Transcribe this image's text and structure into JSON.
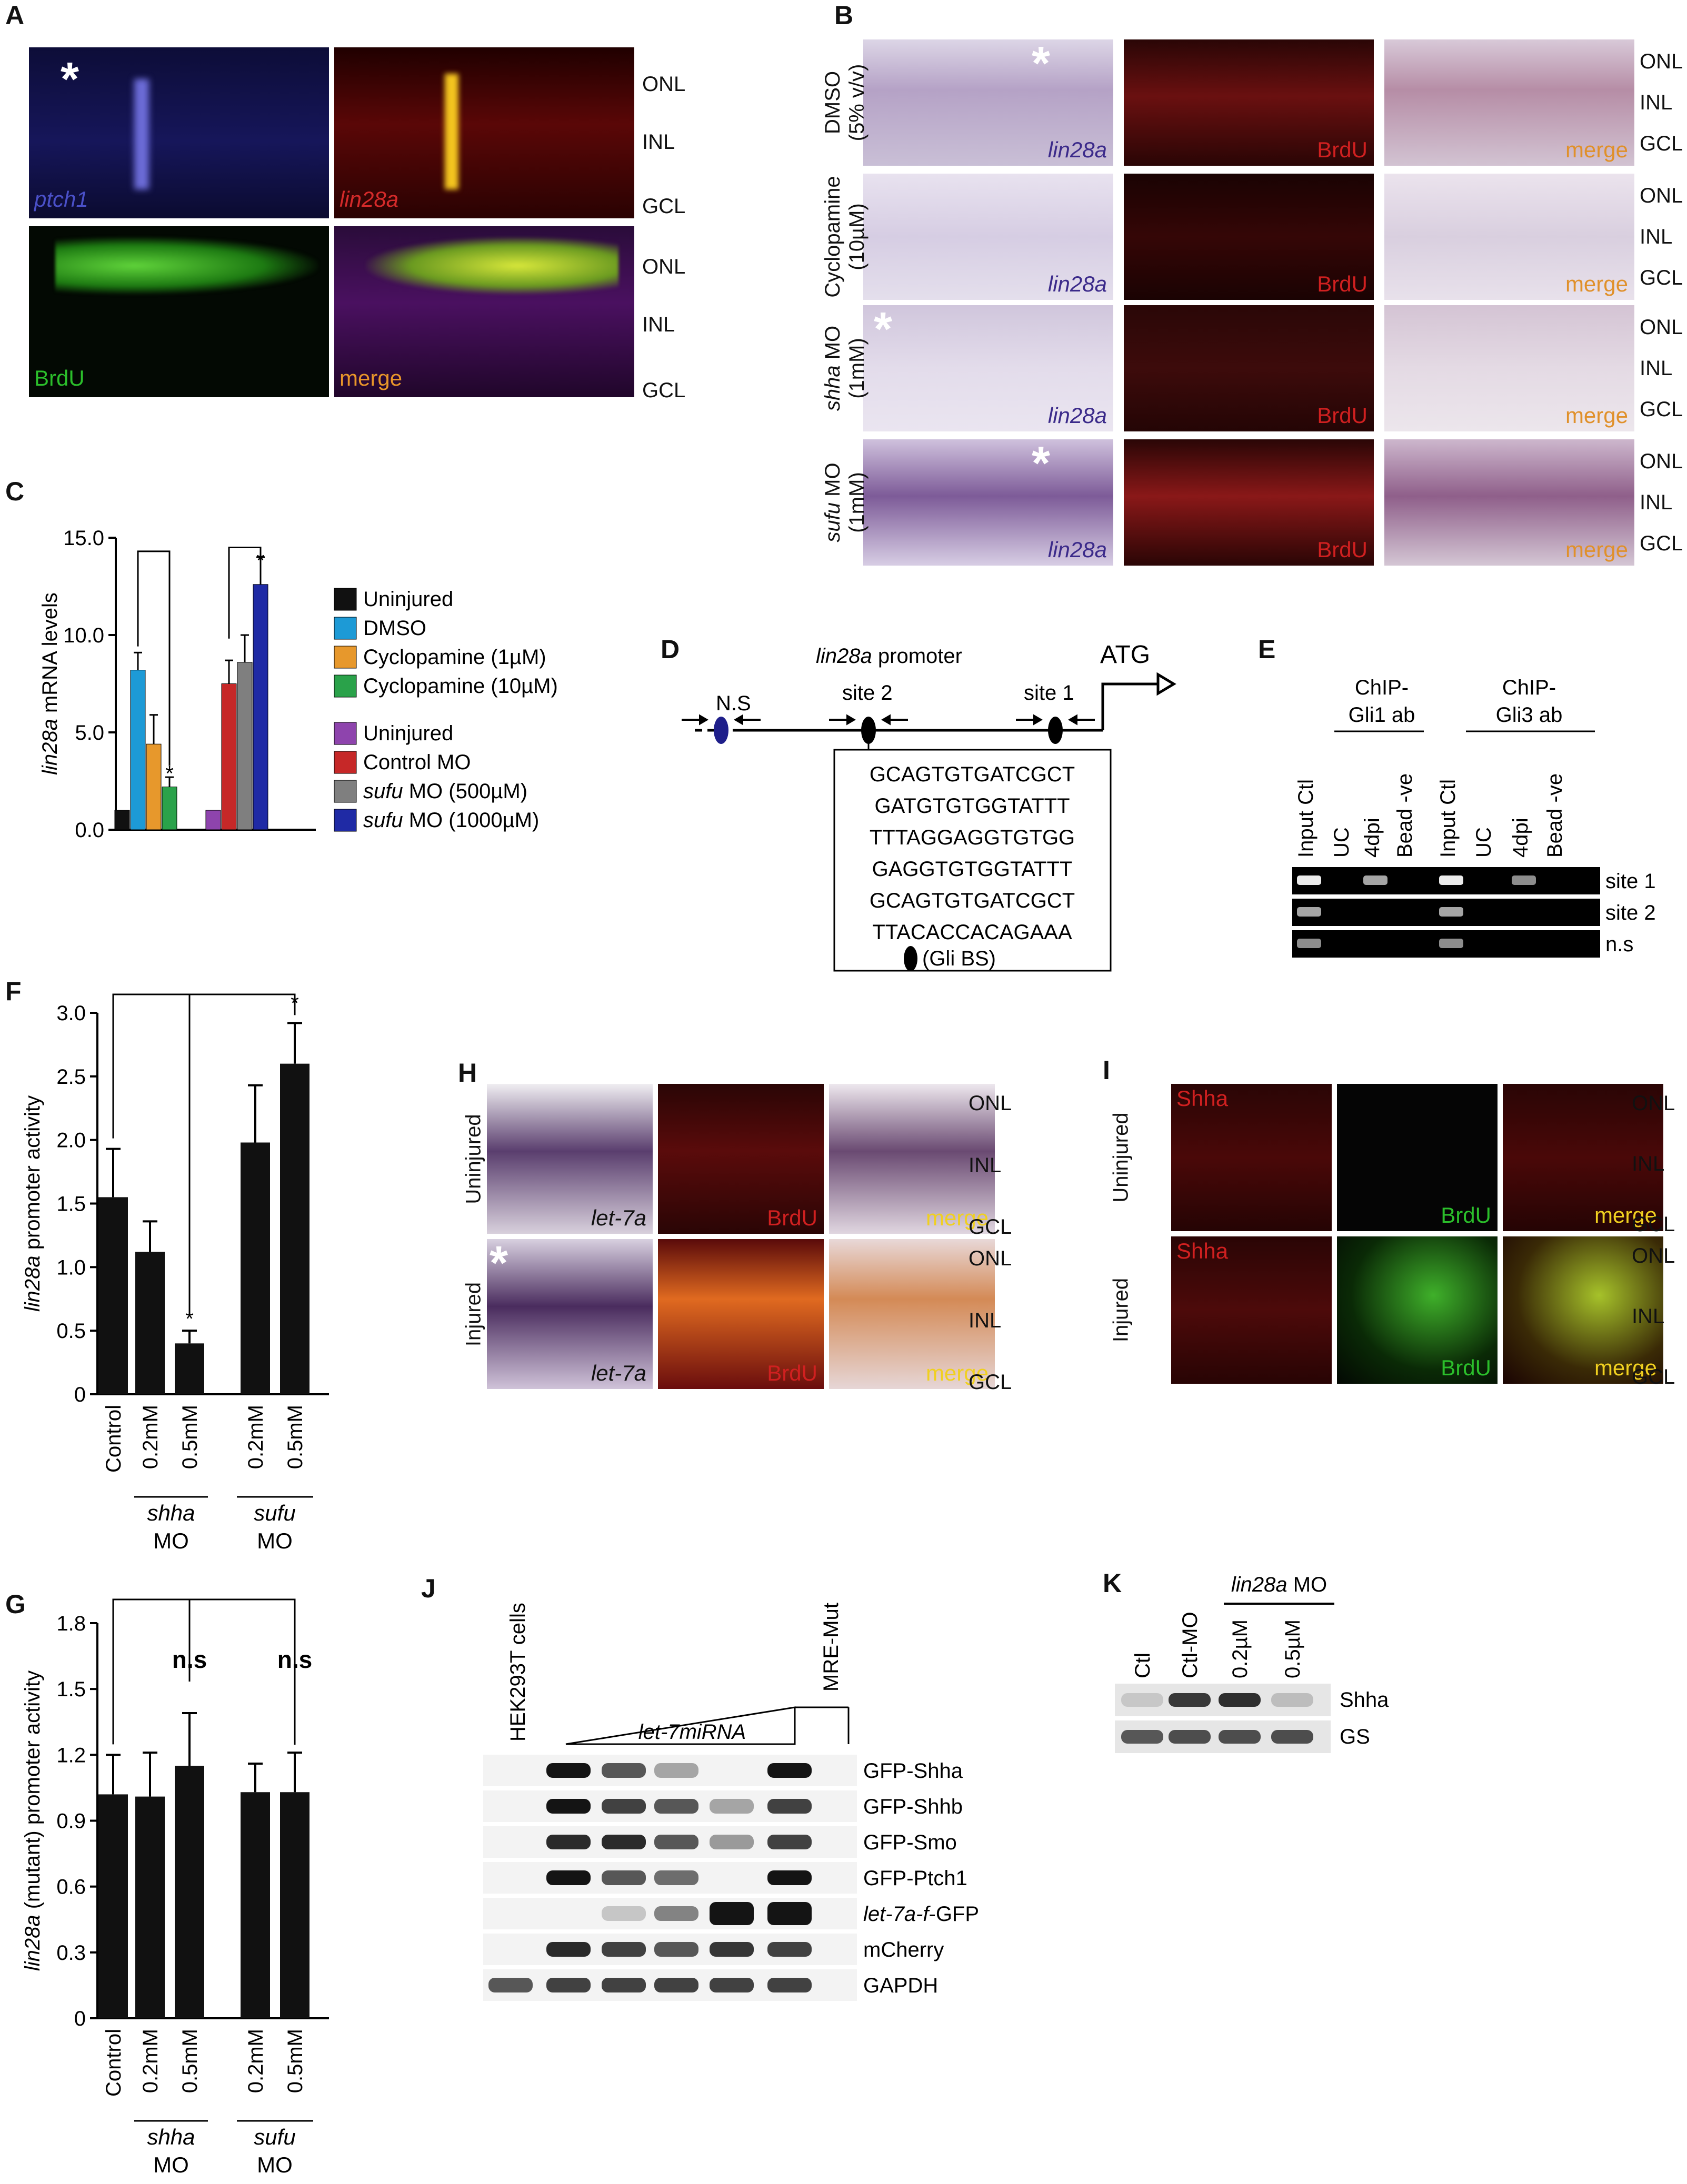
{
  "panels": {
    "A": {
      "label": "A",
      "tiles": [
        "ptch1",
        "lin28a",
        "BrdU",
        "merge"
      ],
      "layers": [
        "ONL",
        "INL",
        "GCL"
      ]
    },
    "B": {
      "label": "B",
      "rows": [
        {
          "cond": "DMSO",
          "sub": "(5% v/v)"
        },
        {
          "cond": "Cyclopamine",
          "sub": "(10µM)"
        },
        {
          "cond": "shha MO",
          "sub": "(1mM)"
        },
        {
          "cond": "sufu MO",
          "sub": "(1mM)"
        }
      ],
      "tags": [
        "lin28a",
        "BrdU",
        "merge"
      ],
      "layers": [
        "ONL",
        "INL",
        "GCL"
      ]
    },
    "D": {
      "label": "D",
      "ns": "N.S",
      "promoter_italic": "lin28a",
      "promoter_rest": " promoter",
      "site2": "site 2",
      "site1": "site 1",
      "atg": "ATG",
      "sequences": [
        "GCAGTGTGATCGCT",
        "GATGTGTGGTATTT",
        "TTTAGGAGGTGTGG",
        "GAGGTGTGGTATTT",
        "GCAGTGTGATCGCT",
        "TTACACCACAGAAA"
      ],
      "legend": "(Gli BS)"
    },
    "E": {
      "label": "E",
      "group1": [
        "ChIP-",
        "Gli1 ab"
      ],
      "group2": [
        "ChIP-",
        "Gli3 ab"
      ],
      "lanes": [
        "Input Ctl",
        "UC",
        "4dpi",
        "Bead -ve",
        "Input Ctl",
        "UC",
        "4dpi",
        "Bead -ve"
      ],
      "rows": [
        "site 1",
        "site 2",
        "n.s"
      ]
    },
    "H": {
      "label": "H",
      "rows": [
        "Uninjured",
        "Injured"
      ],
      "tags": [
        "let-7a",
        "BrdU",
        "merge"
      ],
      "layers": [
        "ONL",
        "INL",
        "GCL"
      ]
    },
    "I": {
      "label": "I",
      "rows": [
        "Uninjured",
        "Injured"
      ],
      "tags": [
        "Shha",
        "BrdU",
        "merge"
      ],
      "layers": [
        "ONL",
        "INL",
        "GCL"
      ]
    },
    "J": {
      "label": "J",
      "cells": "HEK293T cells",
      "mre": "MRE-Mut",
      "mirna": "let-7miRNA",
      "rows": [
        "GFP-Shha",
        "GFP-Shhb",
        "GFP-Smo",
        "GFP-Ptch1",
        "let-7a-f-GFP",
        "mCherry",
        "GAPDH"
      ]
    },
    "K": {
      "label": "K",
      "group": "lin28a MO",
      "lanes": [
        "Ctl",
        "Ctl-MO",
        "0.2µM",
        "0.5µM"
      ],
      "rows": [
        "Shha",
        "GS"
      ]
    }
  },
  "colors": {
    "uninjured": "#111111",
    "dmso": "#1d9ad6",
    "cyclo1": "#e7982c",
    "cyclo10": "#2aa24a",
    "uninjured2": "#8e44ad",
    "controlMO": "#c62828",
    "sufu500": "#7f7f7f",
    "sufu1000": "#1f2aa5"
  },
  "chart_data": [
    {
      "panel": "C",
      "label": "C",
      "type": "bar",
      "ylabel_italic": "lin28a",
      "ylabel_rest": " mRNA levels",
      "ylim": [
        0,
        15
      ],
      "yticks": [
        "0.0",
        "5.0",
        "10.0",
        "15.0"
      ],
      "series": [
        {
          "name": "Uninjured",
          "value": 1.0,
          "error": 0
        },
        {
          "name": "DMSO",
          "value": 8.2,
          "error": 0.9
        },
        {
          "name": "Cyclopamine (1µM)",
          "value": 4.4,
          "error": 1.5
        },
        {
          "name": "Cyclopamine (10µM)",
          "value": 2.2,
          "error": 0.5
        },
        {
          "name": "Uninjured",
          "value": 1.0,
          "error": 0
        },
        {
          "name": "Control MO",
          "value": 7.5,
          "error": 1.2
        },
        {
          "name": "sufu MO (500µM)",
          "value": 8.6,
          "error": 1.4
        },
        {
          "name": "sufu MO (1000µM)",
          "value": 12.6,
          "error": 1.4
        }
      ],
      "legend": [
        {
          "text": "Uninjured"
        },
        {
          "text": "DMSO"
        },
        {
          "text": "Cyclopamine (1µM)"
        },
        {
          "text": "Cyclopamine (10µM)"
        },
        {
          "text": "Uninjured"
        },
        {
          "text": "Control MO"
        },
        {
          "italic": "sufu",
          "text": " MO (500µM)"
        },
        {
          "italic": "sufu",
          "text": " MO (1000µM)"
        }
      ],
      "sig": "*"
    },
    {
      "panel": "F",
      "label": "F",
      "type": "bar",
      "ylabel_italic": "lin28a",
      "ylabel_rest": " promoter activity",
      "ylim": [
        0,
        3
      ],
      "yticks": [
        "0",
        "0.5",
        "1.0",
        "1.5",
        "2.0",
        "2.5",
        "3.0"
      ],
      "categories": [
        "Control",
        "0.2mM",
        "0.5mM",
        "0.2mM",
        "0.5mM"
      ],
      "values": [
        1.55,
        1.12,
        0.4,
        1.98,
        2.6
      ],
      "errors": [
        0.38,
        0.24,
        0.1,
        0.45,
        0.32
      ],
      "groups": [
        "shha",
        "MO",
        "sufu",
        "MO"
      ],
      "sig": "*"
    },
    {
      "panel": "G",
      "label": "G",
      "type": "bar",
      "ylabel_italic": "lin28a",
      "ylabel_rest": " (mutant) promoter activity",
      "ylim": [
        0,
        1.8
      ],
      "yticks": [
        "0",
        "0.3",
        "0.6",
        "0.9",
        "1.2",
        "1.5",
        "1.8"
      ],
      "categories": [
        "Control",
        "0.2mM",
        "0.5mM",
        "0.2mM",
        "0.5mM"
      ],
      "values": [
        1.02,
        1.01,
        1.15,
        1.03,
        1.03
      ],
      "errors": [
        0.18,
        0.2,
        0.24,
        0.13,
        0.18
      ],
      "groups": [
        "shha",
        "MO",
        "sufu",
        "MO"
      ],
      "sig": "n.s"
    }
  ]
}
